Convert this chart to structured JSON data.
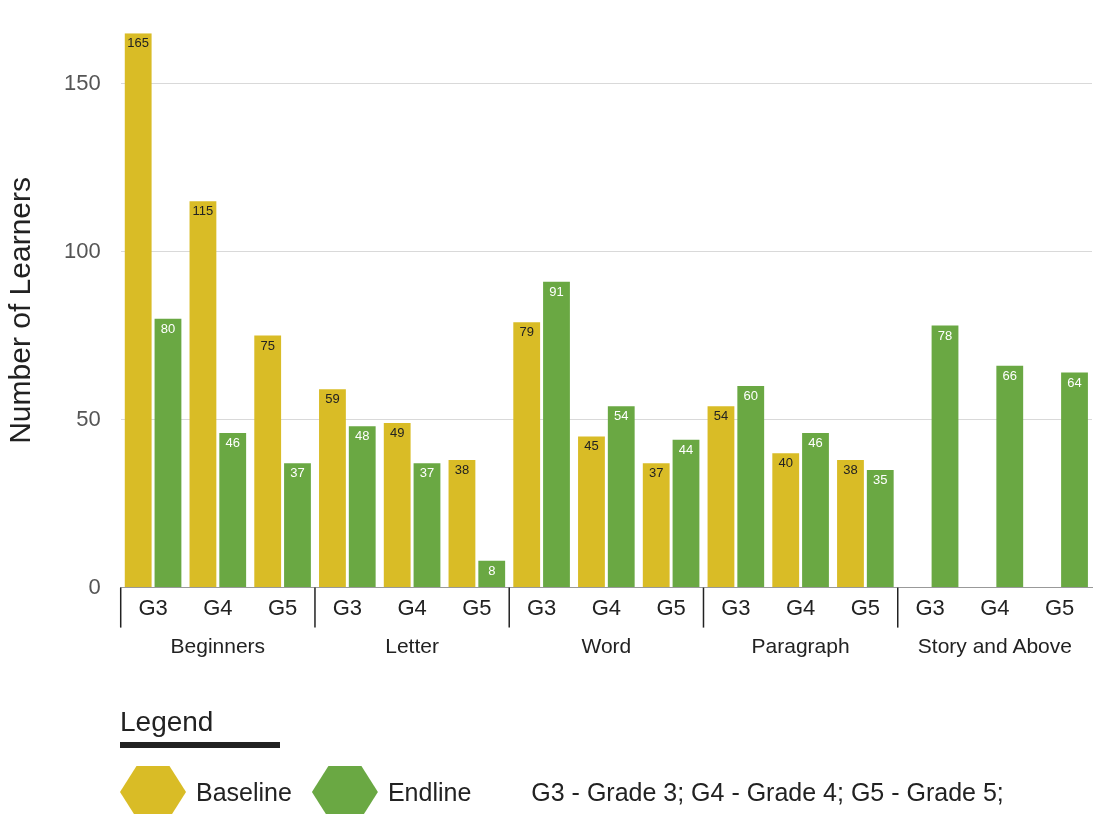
{
  "chart_data": {
    "type": "bar",
    "ylabel": "Number of Learners",
    "legend_title": "Legend",
    "categories": [
      "G3",
      "G4",
      "G5",
      "G3",
      "G4",
      "G5",
      "G3",
      "G4",
      "G5",
      "G3",
      "G4",
      "G5",
      "G3",
      "G4",
      "G5"
    ],
    "series": [
      {
        "name": "Baseline",
        "color": "#d9bc26",
        "values": [
          165,
          115,
          75,
          59,
          49,
          38,
          79,
          45,
          37,
          54,
          40,
          38,
          null,
          null,
          null
        ]
      },
      {
        "name": "Endline",
        "color": "#6aa843",
        "values": [
          80,
          46,
          37,
          48,
          37,
          8,
          91,
          54,
          44,
          60,
          46,
          35,
          78,
          66,
          64
        ]
      }
    ],
    "annotations": [
      "Beginners",
      "Letter",
      "Word",
      "Paragraph",
      "Story and Above",
      "G3 - Grade 3; G4 - Grade 4; G5 - Grade 5;"
    ],
    "ylim": [
      0,
      165
    ],
    "yticks": [
      0,
      50,
      100,
      150
    ],
    "grid": "y",
    "legend": "bottom left",
    "data_labels": true
  }
}
